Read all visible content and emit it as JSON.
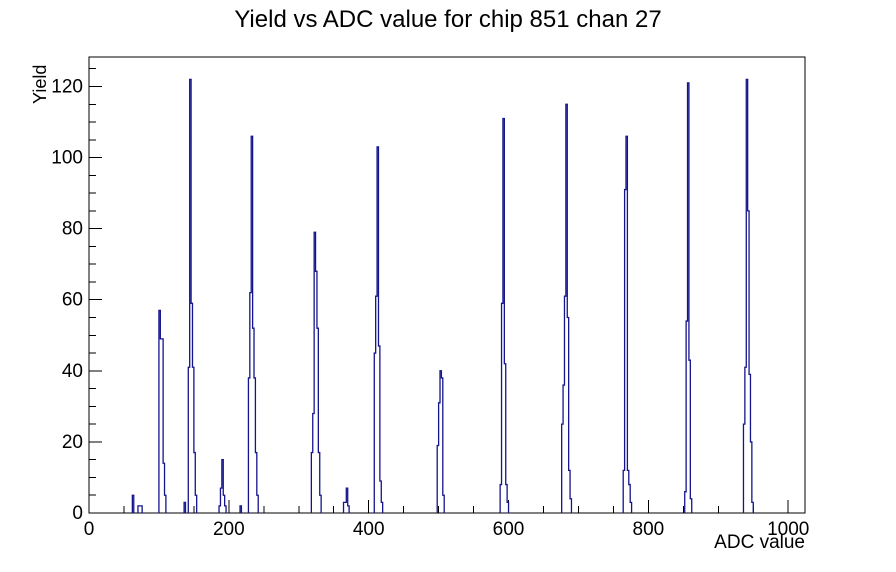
{
  "title": "Yield vs ADC value for chip 851 chan 27",
  "chart_data": {
    "type": "bar",
    "title": "Yield vs ADC value for chip 851 chan 27",
    "xlabel": "ADC value",
    "ylabel": "Yield",
    "xlim": [
      0,
      1024
    ],
    "ylim": [
      0,
      128.3
    ],
    "x_major_ticks": [
      0,
      200,
      400,
      600,
      800,
      1000
    ],
    "x_minor_step": 50,
    "y_major_ticks": [
      0,
      20,
      40,
      60,
      80,
      100,
      120
    ],
    "y_minor_step": 5,
    "grid": false,
    "legend": false,
    "bin_width": 2,
    "line_color": "#14148c",
    "frame_color": "#000000",
    "background_color": "#ffffff",
    "bins": [
      [
        62,
        5
      ],
      [
        70,
        2
      ],
      [
        72,
        2
      ],
      [
        74,
        2
      ],
      [
        100,
        57
      ],
      [
        102,
        49
      ],
      [
        104,
        49
      ],
      [
        106,
        14
      ],
      [
        108,
        5
      ],
      [
        136,
        3
      ],
      [
        142,
        41
      ],
      [
        144,
        122
      ],
      [
        146,
        59
      ],
      [
        148,
        41
      ],
      [
        150,
        17
      ],
      [
        152,
        5
      ],
      [
        186,
        2
      ],
      [
        188,
        7
      ],
      [
        190,
        15
      ],
      [
        192,
        5
      ],
      [
        194,
        2
      ],
      [
        216,
        2
      ],
      [
        228,
        38
      ],
      [
        230,
        62
      ],
      [
        232,
        106
      ],
      [
        234,
        52
      ],
      [
        236,
        38
      ],
      [
        238,
        17
      ],
      [
        240,
        5
      ],
      [
        318,
        17
      ],
      [
        320,
        28
      ],
      [
        322,
        79
      ],
      [
        324,
        68
      ],
      [
        326,
        52
      ],
      [
        328,
        17
      ],
      [
        330,
        5
      ],
      [
        364,
        3
      ],
      [
        366,
        3
      ],
      [
        368,
        7
      ],
      [
        370,
        2
      ],
      [
        408,
        45
      ],
      [
        410,
        61
      ],
      [
        412,
        103
      ],
      [
        414,
        47
      ],
      [
        416,
        9
      ],
      [
        418,
        3
      ],
      [
        498,
        19
      ],
      [
        500,
        31
      ],
      [
        502,
        40
      ],
      [
        504,
        38
      ],
      [
        506,
        5
      ],
      [
        588,
        8
      ],
      [
        590,
        59
      ],
      [
        592,
        111
      ],
      [
        594,
        42
      ],
      [
        596,
        8
      ],
      [
        598,
        3
      ],
      [
        676,
        25
      ],
      [
        678,
        36
      ],
      [
        680,
        61
      ],
      [
        682,
        115
      ],
      [
        684,
        55
      ],
      [
        686,
        12
      ],
      [
        688,
        4
      ],
      [
        764,
        12
      ],
      [
        766,
        91
      ],
      [
        768,
        106
      ],
      [
        770,
        12
      ],
      [
        772,
        8
      ],
      [
        774,
        3
      ],
      [
        852,
        6
      ],
      [
        854,
        54
      ],
      [
        856,
        121
      ],
      [
        858,
        43
      ],
      [
        860,
        4
      ],
      [
        936,
        25
      ],
      [
        938,
        41
      ],
      [
        940,
        122
      ],
      [
        942,
        85
      ],
      [
        944,
        39
      ],
      [
        946,
        20
      ],
      [
        948,
        3
      ]
    ]
  }
}
